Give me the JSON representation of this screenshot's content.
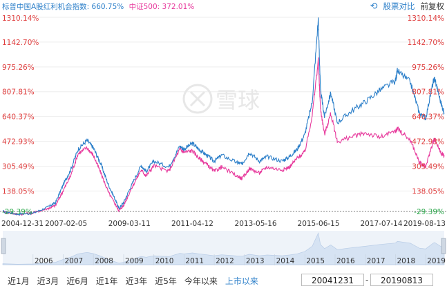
{
  "legend": {
    "series1_label": "标普中国A股红利机会指数: 660.75%",
    "series2_label": "中证500: 372.01%"
  },
  "toolbar": {
    "compare_label": "股票对比",
    "adjust_label": "前复权"
  },
  "colors": {
    "series1": "#2c7fc9",
    "series2": "#e7399c",
    "axis_left": "#e04040",
    "axis_right": "#e04040",
    "zero_label": "#2aa84a",
    "navigator_fill": "#dbe6f3",
    "navigator_bg": "#eef3f9"
  },
  "watermark": "雪球",
  "chart_data": {
    "type": "line",
    "ylim": [
      0,
      1310.14
    ],
    "y_ticks": [
      "1310.14%",
      "1142.70%",
      "975.26%",
      "807.81%",
      "640.37%",
      "472.93%",
      "305.49%",
      "138.05%",
      "-29.39%"
    ],
    "y_tick_values": [
      1310.14,
      1142.7,
      975.26,
      807.81,
      640.37,
      472.93,
      305.49,
      138.05,
      -29.39
    ],
    "x_ticks": [
      "2004-12-31",
      "2007-02-05",
      "2009-03-11",
      "2011-04-12",
      "2013-05-16",
      "2015-06-15",
      "2017-07-14",
      "2019-08-13"
    ],
    "navigator_years": [
      "2006",
      "2007",
      "2008",
      "2009",
      "2010",
      "2011",
      "2012",
      "2013",
      "2014",
      "2015",
      "2016",
      "2017",
      "2018",
      "2019"
    ],
    "x_range": [
      "2004-12-31",
      "2019-08-13"
    ],
    "series": [
      {
        "name": "标普中国A股红利机会指数",
        "points": [
          [
            "2004-12-31",
            0
          ],
          [
            "2005-06-30",
            -18
          ],
          [
            "2005-12-31",
            -12
          ],
          [
            "2006-06-30",
            30
          ],
          [
            "2006-09-30",
            60
          ],
          [
            "2006-12-31",
            180
          ],
          [
            "2007-03-31",
            280
          ],
          [
            "2007-06-30",
            420
          ],
          [
            "2007-10-15",
            480
          ],
          [
            "2007-12-31",
            430
          ],
          [
            "2008-03-31",
            320
          ],
          [
            "2008-06-30",
            180
          ],
          [
            "2008-09-30",
            70
          ],
          [
            "2008-11-04",
            20
          ],
          [
            "2008-12-31",
            60
          ],
          [
            "2009-03-31",
            170
          ],
          [
            "2009-07-31",
            310
          ],
          [
            "2009-09-30",
            270
          ],
          [
            "2009-12-31",
            340
          ],
          [
            "2010-06-30",
            300
          ],
          [
            "2010-11-10",
            440
          ],
          [
            "2010-12-31",
            420
          ],
          [
            "2011-04-12",
            460
          ],
          [
            "2011-06-30",
            420
          ],
          [
            "2011-09-30",
            380
          ],
          [
            "2011-12-31",
            340
          ],
          [
            "2012-03-31",
            380
          ],
          [
            "2012-09-30",
            330
          ],
          [
            "2012-12-04",
            320
          ],
          [
            "2013-02-28",
            400
          ],
          [
            "2013-06-30",
            340
          ],
          [
            "2013-09-30",
            370
          ],
          [
            "2014-03-31",
            340
          ],
          [
            "2014-06-30",
            370
          ],
          [
            "2014-09-30",
            420
          ],
          [
            "2014-12-31",
            520
          ],
          [
            "2015-03-31",
            740
          ],
          [
            "2015-06-12",
            1300
          ],
          [
            "2015-07-08",
            820
          ],
          [
            "2015-08-26",
            640
          ],
          [
            "2015-11-10",
            800
          ],
          [
            "2016-01-28",
            600
          ],
          [
            "2016-06-30",
            670
          ],
          [
            "2016-12-31",
            740
          ],
          [
            "2017-06-30",
            820
          ],
          [
            "2017-12-31",
            880
          ],
          [
            "2018-01-24",
            950
          ],
          [
            "2018-06-30",
            870
          ],
          [
            "2018-10-18",
            660
          ],
          [
            "2018-12-31",
            630
          ],
          [
            "2019-03-31",
            870
          ],
          [
            "2019-04-19",
            900
          ],
          [
            "2019-06-30",
            740
          ],
          [
            "2019-08-13",
            660.75
          ]
        ]
      },
      {
        "name": "中证500",
        "points": [
          [
            "2004-12-31",
            0
          ],
          [
            "2005-06-30",
            -20
          ],
          [
            "2005-12-31",
            -10
          ],
          [
            "2006-06-30",
            20
          ],
          [
            "2006-09-30",
            40
          ],
          [
            "2006-12-31",
            140
          ],
          [
            "2007-03-31",
            240
          ],
          [
            "2007-06-30",
            390
          ],
          [
            "2007-10-15",
            430
          ],
          [
            "2007-12-31",
            380
          ],
          [
            "2008-03-31",
            260
          ],
          [
            "2008-06-30",
            130
          ],
          [
            "2008-09-30",
            40
          ],
          [
            "2008-11-04",
            5
          ],
          [
            "2008-12-31",
            40
          ],
          [
            "2009-03-31",
            150
          ],
          [
            "2009-07-31",
            280
          ],
          [
            "2009-09-30",
            240
          ],
          [
            "2009-12-31",
            310
          ],
          [
            "2010-06-30",
            270
          ],
          [
            "2010-11-10",
            420
          ],
          [
            "2010-12-31",
            400
          ],
          [
            "2011-04-12",
            410
          ],
          [
            "2011-06-30",
            360
          ],
          [
            "2011-09-30",
            320
          ],
          [
            "2011-12-31",
            270
          ],
          [
            "2012-03-31",
            300
          ],
          [
            "2012-09-30",
            240
          ],
          [
            "2012-12-04",
            220
          ],
          [
            "2013-02-28",
            290
          ],
          [
            "2013-06-30",
            260
          ],
          [
            "2013-09-30",
            300
          ],
          [
            "2014-03-31",
            280
          ],
          [
            "2014-06-30",
            300
          ],
          [
            "2014-09-30",
            360
          ],
          [
            "2014-12-31",
            400
          ],
          [
            "2015-03-31",
            650
          ],
          [
            "2015-06-12",
            1020
          ],
          [
            "2015-07-08",
            700
          ],
          [
            "2015-08-26",
            520
          ],
          [
            "2015-11-10",
            660
          ],
          [
            "2016-01-28",
            470
          ],
          [
            "2016-06-30",
            500
          ],
          [
            "2016-12-31",
            530
          ],
          [
            "2017-06-30",
            500
          ],
          [
            "2017-12-31",
            540
          ],
          [
            "2018-01-24",
            560
          ],
          [
            "2018-06-30",
            480
          ],
          [
            "2018-10-18",
            330
          ],
          [
            "2018-12-31",
            300
          ],
          [
            "2019-03-31",
            470
          ],
          [
            "2019-04-19",
            490
          ],
          [
            "2019-06-30",
            400
          ],
          [
            "2019-08-13",
            372.01
          ]
        ]
      }
    ]
  },
  "range_buttons": [
    "近1月",
    "近3月",
    "近6月",
    "近1年",
    "近3年",
    "近5年",
    "今年以来",
    "上市以来"
  ],
  "active_range": "上市以来",
  "date_from": "20041231",
  "date_to": "20190813",
  "date_separator": "-"
}
